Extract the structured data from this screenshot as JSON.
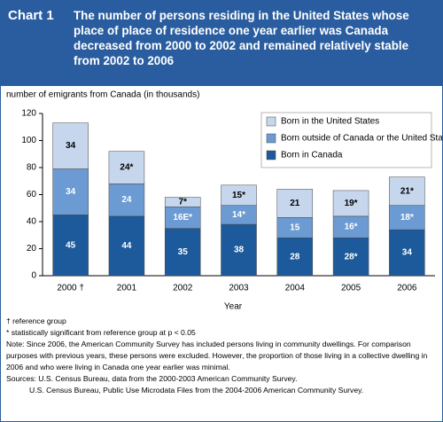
{
  "chart_data": {
    "type": "stacked-bar",
    "label": "Chart 1",
    "title": "The number of persons residing in the United States whose place of place of residence one year earlier was Canada decreased from 2000 to 2002 and remained relatively stable from 2002 to 2006",
    "y_label": "number of emigrants from Canada (in thousands)",
    "x_label": "Year",
    "categories": [
      "2000 †",
      "2001",
      "2002",
      "2003",
      "2004",
      "2005",
      "2006"
    ],
    "series": [
      {
        "name": "Born in Canada",
        "color": "#1c5a9c",
        "values": [
          45,
          44,
          35,
          38,
          28,
          28,
          34
        ],
        "value_labels": [
          "45",
          "44",
          "35",
          "38",
          "28",
          "28*",
          "34"
        ]
      },
      {
        "name": "Born outside of Canada or the United States",
        "color": "#6b9bd2",
        "values": [
          34,
          24,
          16,
          14,
          15,
          16,
          18
        ],
        "value_labels": [
          "34",
          "24",
          "16E*",
          "14*",
          "15",
          "16*",
          "18*"
        ]
      },
      {
        "name": "Born in the United States",
        "color": "#c6d6ed",
        "values": [
          34,
          24,
          7,
          15,
          21,
          19,
          21
        ],
        "value_labels": [
          "34",
          "24*",
          "7*",
          "15*",
          "21",
          "19*",
          "21*"
        ]
      }
    ],
    "ylim": [
      0,
      120
    ],
    "yticks": [
      0,
      20,
      40,
      60,
      80,
      100,
      120
    ],
    "notes": [
      "† reference group",
      "*  statistically significant from reference group at p < 0.05",
      "Note: Since 2006, the American Community Survey has included persons living in community dwellings. For comparison purposes with previous years, these persons were excluded. However, the proportion of those living in a collective dwelling in 2006 and who were living in Canada one year earlier was minimal.",
      "Sources: U.S. Census Bureau, data from the 2000-2003 American Community Survey.",
      "U.S. Census Bureau, Public Use Microdata Files from the 2004-2006 American Community Survey."
    ]
  }
}
